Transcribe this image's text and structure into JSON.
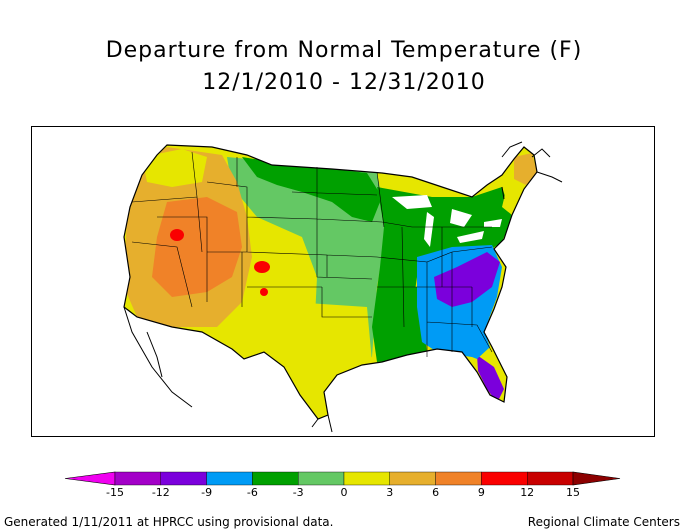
{
  "title": "Departure from Normal Temperature (F)",
  "subtitle": "12/1/2010 - 12/31/2010",
  "legend": {
    "ticks": [
      "-15",
      "-12",
      "-9",
      "-6",
      "-3",
      "0",
      "3",
      "6",
      "9",
      "12",
      "15"
    ],
    "bins": [
      {
        "range": [
          -15,
          -12
        ],
        "color": "#a300c8"
      },
      {
        "range": [
          -12,
          -9
        ],
        "color": "#7b00dc"
      },
      {
        "range": [
          -9,
          -6
        ],
        "color": "#009bf5"
      },
      {
        "range": [
          -6,
          -3
        ],
        "color": "#00a000"
      },
      {
        "range": [
          -3,
          0
        ],
        "color": "#64c864"
      },
      {
        "range": [
          0,
          3
        ],
        "color": "#e6e600"
      },
      {
        "range": [
          3,
          6
        ],
        "color": "#e6af2d"
      },
      {
        "range": [
          6,
          9
        ],
        "color": "#f08228"
      },
      {
        "range": [
          9,
          12
        ],
        "color": "#fa0000"
      },
      {
        "range": [
          12,
          15
        ],
        "color": "#c80000"
      }
    ],
    "low_arrow_color": "#f000f0",
    "high_arrow_color": "#8c0000"
  },
  "footer": {
    "left": "Generated 1/11/2011 at HPRCC using provisional data.",
    "right": "Regional Climate Centers"
  }
}
